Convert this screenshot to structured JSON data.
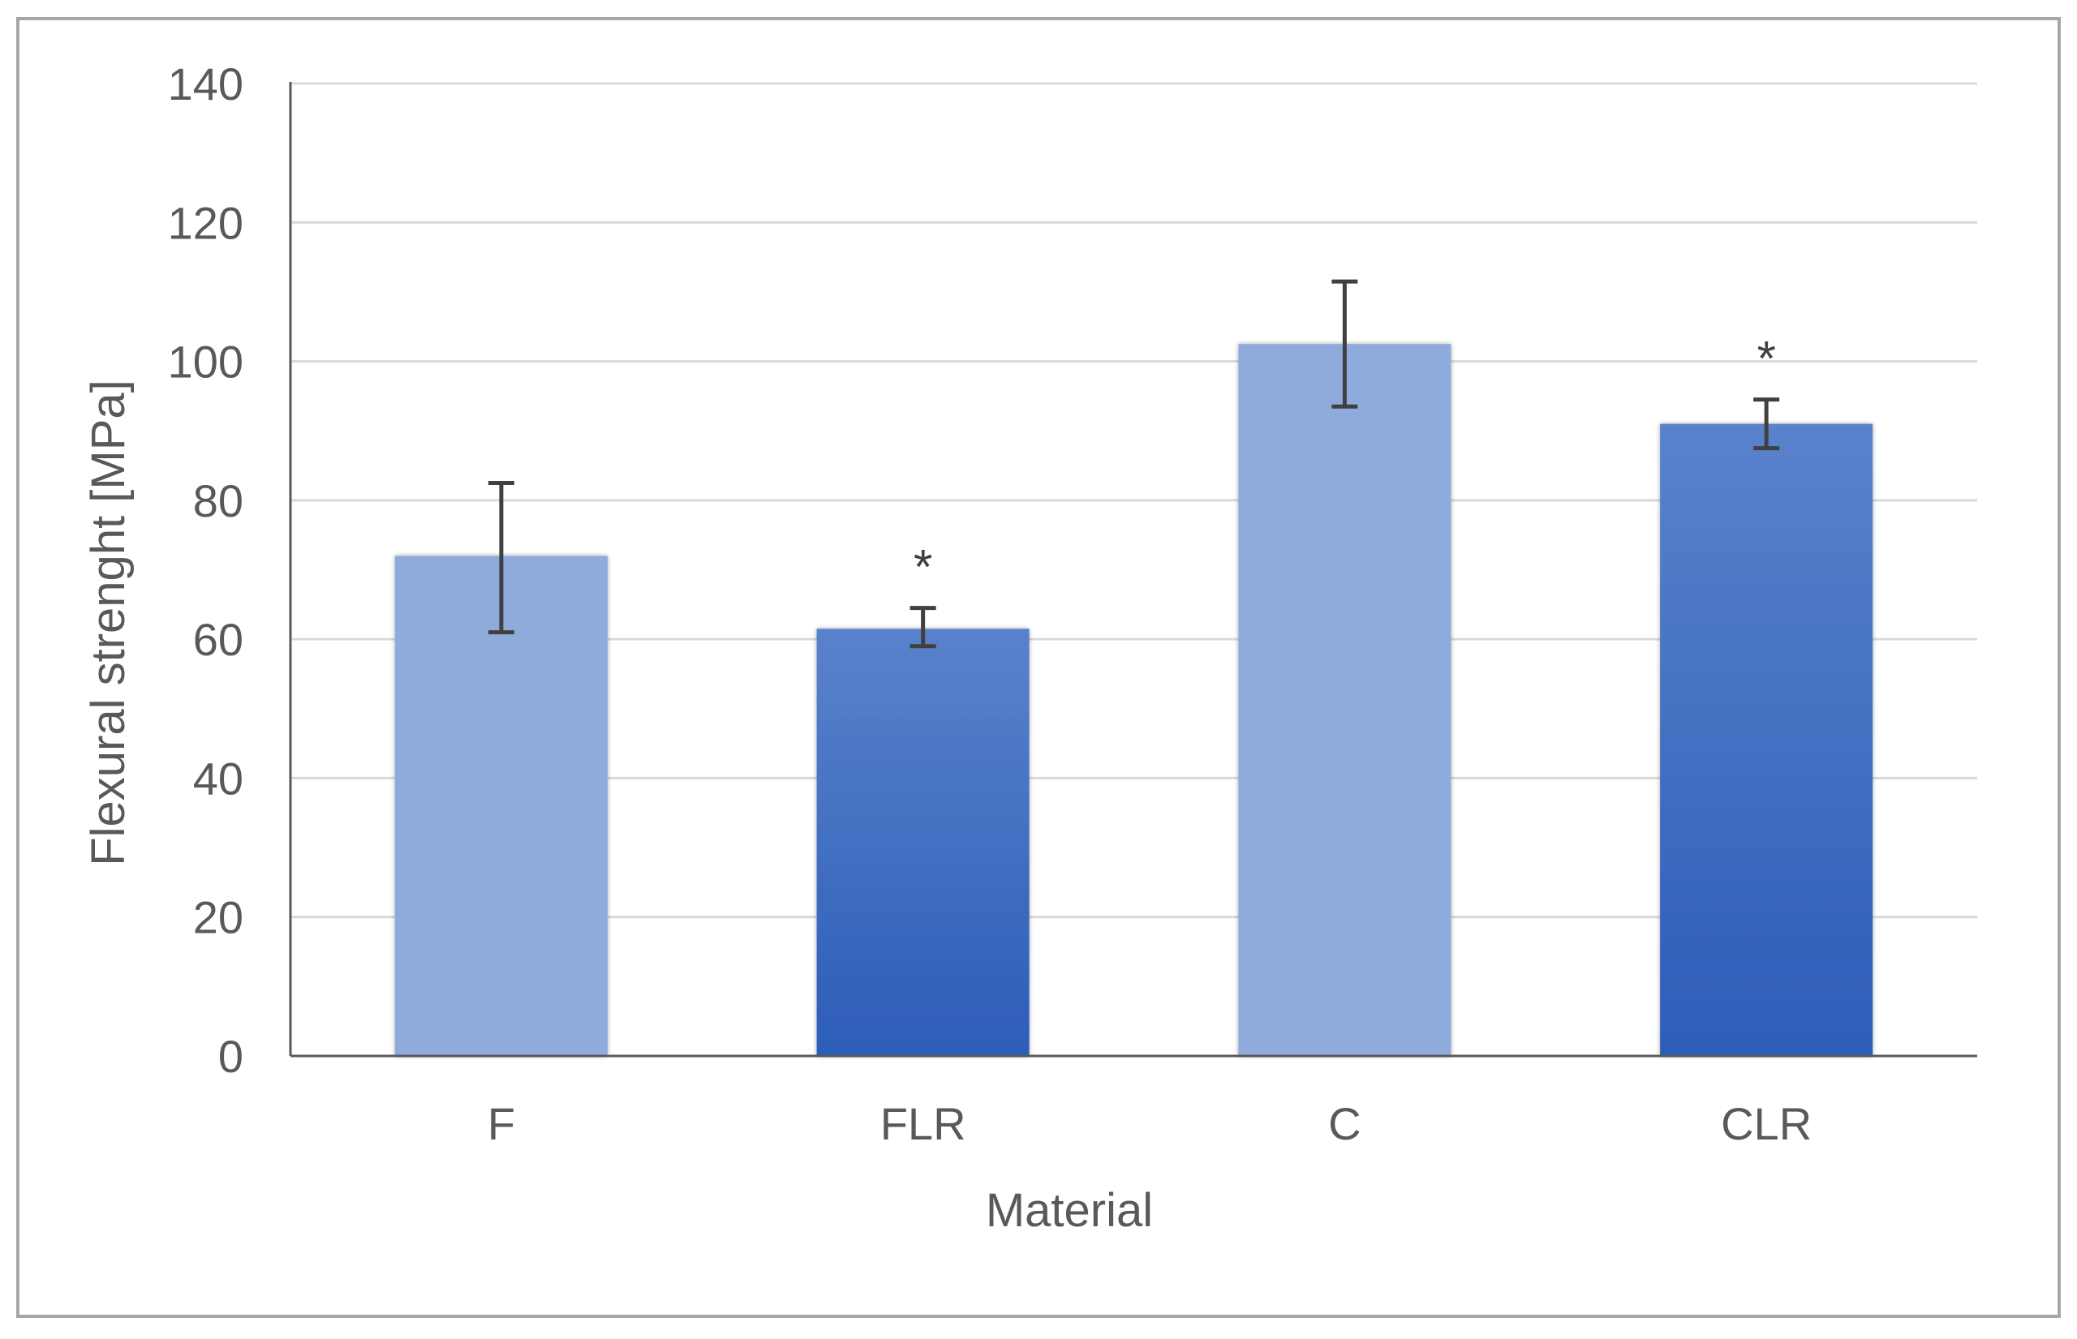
{
  "chart_data": {
    "type": "bar",
    "title": "",
    "xlabel": "Material",
    "ylabel": "Flexural strenght [MPa]",
    "ylim": [
      0,
      140
    ],
    "yticks": [
      0,
      20,
      40,
      60,
      80,
      100,
      120,
      140
    ],
    "ytick_labels": [
      "0",
      "20",
      "40",
      "60",
      "80",
      "100",
      "120",
      "140"
    ],
    "grid": true,
    "legend": "none",
    "categories": [
      "F",
      "FLR",
      "C",
      "CLR"
    ],
    "values": [
      72,
      61.5,
      102.5,
      91
    ],
    "error_low": [
      61,
      59,
      93.5,
      87.5
    ],
    "error_high": [
      82.5,
      64.5,
      111.5,
      94.5
    ],
    "annotations": [
      "",
      "*",
      "",
      "*"
    ],
    "bar_styles": [
      "light",
      "dark",
      "light",
      "dark"
    ],
    "colors": {
      "light_bar": "#8FABDC",
      "dark_bar_top": "#5A82CC",
      "dark_bar_bottom": "#2C5DB8",
      "grid": "#D9D9D9",
      "axis": "#595959",
      "error_bar": "#404040",
      "frame": "#A6A6A6"
    }
  }
}
